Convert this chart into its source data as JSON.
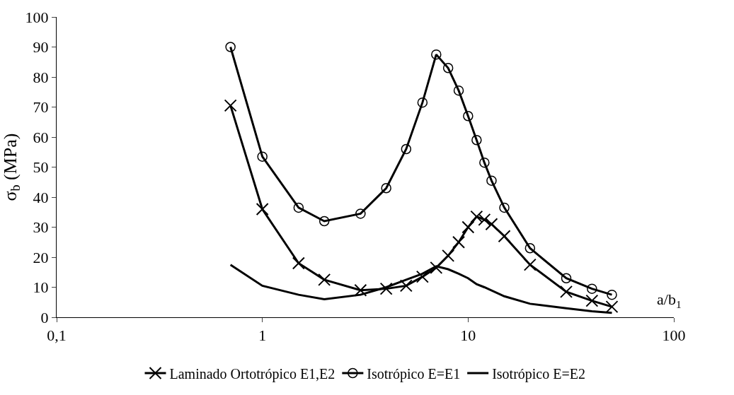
{
  "chart_data": {
    "type": "line",
    "xlabel": "a/b$_{1}$",
    "ylabel": "σ$_{b}$ (MPa)",
    "log": "x",
    "xlim": [
      0.1,
      100
    ],
    "xticks": [
      {
        "value": 0.1,
        "label": "0,1"
      },
      1,
      10,
      100
    ],
    "ylim": [
      0,
      100
    ],
    "yticks": [
      0,
      10,
      20,
      30,
      40,
      50,
      60,
      70,
      80,
      90,
      100
    ],
    "grid": false,
    "legend": "bottom",
    "series": [
      {
        "name": "Laminado Ortotrópico E1,E2",
        "color": "#000000",
        "marker": "cross",
        "x": [
          0.7,
          1,
          1.5,
          2,
          3,
          4,
          5,
          6,
          7,
          8,
          9,
          10,
          11,
          12,
          13,
          15,
          20,
          30,
          40,
          50
        ],
        "values": [
          70.5,
          36,
          18,
          12.5,
          9,
          9.5,
          10.5,
          13.5,
          16.5,
          20.5,
          25,
          30,
          33.5,
          32.5,
          31,
          27,
          17.5,
          8.5,
          5.5,
          3.5
        ]
      },
      {
        "name": "Isotrópico E=E1",
        "color": "#000000",
        "marker": "circle",
        "x": [
          0.7,
          1,
          1.5,
          2,
          3,
          4,
          5,
          6,
          7,
          8,
          9,
          10,
          11,
          12,
          13,
          15,
          20,
          30,
          40,
          50
        ],
        "values": [
          90,
          53.5,
          36.5,
          32,
          34.5,
          43,
          56,
          71.5,
          87.5,
          83,
          75.5,
          67,
          59,
          51.5,
          45.5,
          36.5,
          23,
          13,
          9.5,
          7.5
        ]
      },
      {
        "name": "Isotrópico E=E2",
        "color": "#000000",
        "marker": "none",
        "x": [
          0.7,
          1,
          1.5,
          2,
          3,
          4,
          5,
          6,
          7,
          8,
          9,
          10,
          11,
          12,
          15,
          20,
          30,
          40,
          50
        ],
        "values": [
          17.5,
          10.5,
          7.5,
          6,
          7.5,
          10,
          12.5,
          14.5,
          17,
          16,
          14.5,
          13,
          11,
          10,
          7,
          4.5,
          3,
          2,
          1.5
        ]
      }
    ]
  }
}
